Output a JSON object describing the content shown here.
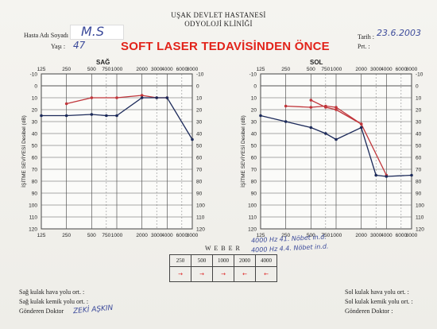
{
  "header": {
    "line1": "UŞAK DEVLET HASTANESİ",
    "line2": "ODYOLOJİ KLİNİĞİ"
  },
  "patient": {
    "name_label": "Hasta Adı Soyadı :",
    "name_value": "M.S",
    "age_label": "Yaşı :",
    "age_value": "47",
    "date_label": "Tarih :",
    "date_value": "23.6.2003",
    "prt_label": "Prt. :"
  },
  "title": "SOFT LASER TEDAVİSİNDEN ÖNCE",
  "sides": {
    "right": "SAĞ",
    "left": "SOL"
  },
  "y_axis_label": "İŞİTME SEVİYESİ Desibel (dB)",
  "chart_data": [
    {
      "type": "line",
      "panel": "SAĞ",
      "freq_top": [
        "125",
        "250",
        "500",
        "750",
        "1000",
        "2000",
        "3000",
        "4000",
        "6000",
        "8000"
      ],
      "freq_bottom": [
        "125",
        "250",
        "500",
        "750",
        "1000",
        "2000",
        "3000",
        "4000",
        "6000",
        "8000"
      ],
      "y_ticks": [
        "-10",
        "0",
        "10",
        "20",
        "30",
        "40",
        "50",
        "60",
        "70",
        "80",
        "90",
        "100",
        "110",
        "120"
      ],
      "ylim": [
        -10,
        120
      ],
      "series": [
        {
          "color": "#c0353a",
          "points": [
            [
              250,
              15
            ],
            [
              500,
              10
            ],
            [
              1000,
              10
            ],
            [
              2000,
              8
            ],
            [
              3000,
              10
            ],
            [
              4000,
              10
            ]
          ]
        },
        {
          "color": "#1c2a5a",
          "points": [
            [
              125,
              25
            ],
            [
              250,
              25
            ],
            [
              500,
              24
            ],
            [
              750,
              25
            ],
            [
              1000,
              25
            ],
            [
              2000,
              10
            ],
            [
              3000,
              10
            ],
            [
              4000,
              10
            ],
            [
              8000,
              45
            ]
          ]
        }
      ]
    },
    {
      "type": "line",
      "panel": "SOL",
      "freq_top": [
        "125",
        "250",
        "500",
        "750",
        "1000",
        "2000",
        "3000",
        "4000",
        "6000",
        "8000"
      ],
      "freq_bottom": [
        "125",
        "250",
        "500",
        "750",
        "1000",
        "2000",
        "3000",
        "4000",
        "6000",
        "8000"
      ],
      "y_ticks": [
        "-10",
        "0",
        "10",
        "20",
        "30",
        "40",
        "50",
        "60",
        "70",
        "80",
        "90",
        "100",
        "110",
        "120"
      ],
      "ylim": [
        -10,
        120
      ],
      "series": [
        {
          "color": "#c0353a",
          "points": [
            [
              500,
              12
            ],
            [
              750,
              18
            ],
            [
              1000,
              20
            ],
            [
              2000,
              32
            ],
            [
              4000,
              75
            ]
          ]
        },
        {
          "color": "#c0353a",
          "points": [
            [
              250,
              17
            ],
            [
              500,
              18
            ],
            [
              750,
              17
            ],
            [
              1000,
              18
            ],
            [
              2000,
              32
            ]
          ]
        },
        {
          "color": "#1c2a5a",
          "points": [
            [
              125,
              25
            ],
            [
              250,
              30
            ],
            [
              500,
              35
            ],
            [
              750,
              40
            ],
            [
              1000,
              45
            ],
            [
              2000,
              35
            ],
            [
              3000,
              75
            ],
            [
              4000,
              76
            ],
            [
              8000,
              75
            ]
          ]
        }
      ]
    }
  ],
  "weber": {
    "label": "W E B E R",
    "freqs": [
      "250",
      "500",
      "1000",
      "2000",
      "4000"
    ],
    "marks": [
      "→",
      "→",
      "→",
      "←",
      "←"
    ]
  },
  "notes": {
    "line1": "4000 Hz 41. Nöbet in.d.",
    "line2": "4000 Hz 4.4. Nöbet in.d."
  },
  "footer": {
    "sag_hava": "Sağ kulak hava yolu ort. :",
    "sag_kemik": "Sağ kulak kemik yolu ort. :",
    "gonderen": "Gönderen Doktor",
    "doctor": "ZEKİ AŞKIN",
    "sol_hava": "Sol kulak hava yolu ort. :",
    "sol_kemik": "Sol kulak kemik yolu ort. :",
    "gonderen_right": "Gönderen Doktor :"
  }
}
